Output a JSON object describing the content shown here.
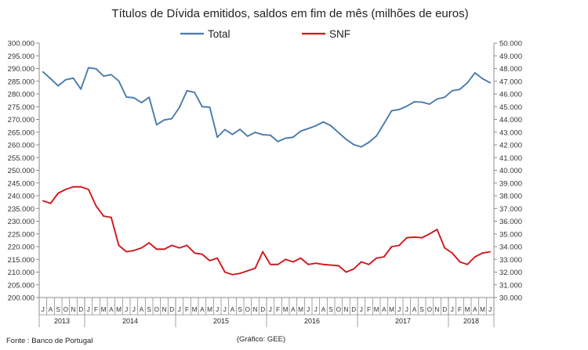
{
  "chart_data": {
    "type": "line",
    "title": "Títulos de Dívida emitidos, saldos em fim de mês  (milhões de euros)",
    "legend": [
      "Total",
      "SNF"
    ],
    "legend_position": "top-center",
    "grid": false,
    "x": [
      "J",
      "A",
      "S",
      "O",
      "N",
      "D",
      "J",
      "F",
      "M",
      "A",
      "M",
      "J",
      "J",
      "A",
      "S",
      "O",
      "N",
      "D",
      "J",
      "F",
      "M",
      "A",
      "M",
      "J",
      "J",
      "A",
      "S",
      "O",
      "N",
      "D",
      "J",
      "F",
      "M",
      "A",
      "M",
      "J",
      "J",
      "A",
      "S",
      "O",
      "N",
      "D",
      "J",
      "F",
      "M",
      "A",
      "M",
      "J",
      "J",
      "A",
      "S",
      "O",
      "N",
      "D",
      "J",
      "F",
      "M",
      "A",
      "M",
      "J"
    ],
    "year_groups": [
      {
        "label": "2013",
        "start": 0,
        "count": 6
      },
      {
        "label": "2014",
        "start": 6,
        "count": 12
      },
      {
        "label": "2015",
        "start": 18,
        "count": 12
      },
      {
        "label": "2016",
        "start": 30,
        "count": 12
      },
      {
        "label": "2017",
        "start": 42,
        "count": 12
      },
      {
        "label": "2018",
        "start": 54,
        "count": 6
      }
    ],
    "y_left": {
      "min": 200000,
      "max": 300000,
      "step": 5000,
      "ticks": [
        "200.000",
        "205.000",
        "210.000",
        "215.000",
        "220.000",
        "225.000",
        "230.000",
        "235.000",
        "240.000",
        "245.000",
        "250.000",
        "255.000",
        "260.000",
        "265.000",
        "270.000",
        "275.000",
        "280.000",
        "285.000",
        "290.000",
        "295.000",
        "300.000"
      ]
    },
    "y_right": {
      "min": 30000,
      "max": 50000,
      "step": 1000,
      "ticks": [
        "30.000",
        "31.000",
        "32.000",
        "33.000",
        "34.000",
        "35.000",
        "36.000",
        "37.000",
        "38.000",
        "39.000",
        "40.000",
        "41.000",
        "42.000",
        "43.000",
        "44.000",
        "45.000",
        "46.000",
        "47.000",
        "48.000",
        "49.000",
        "50.000"
      ]
    },
    "series": [
      {
        "name": "Total",
        "axis": "left",
        "color": "#4a7bab",
        "values": [
          288700,
          286000,
          283200,
          285600,
          286200,
          281900,
          290300,
          289900,
          287000,
          287600,
          285100,
          278800,
          278500,
          276600,
          278700,
          267900,
          269800,
          270300,
          274700,
          281300,
          280600,
          275000,
          274800,
          263000,
          266000,
          264100,
          266100,
          263400,
          264900,
          264000,
          263800,
          261300,
          262600,
          263000,
          265400,
          266400,
          267500,
          269000,
          267500,
          264800,
          262200,
          260100,
          259200,
          261000,
          263500,
          268400,
          273400,
          273900,
          275200,
          276900,
          276800,
          276000,
          278000,
          278700,
          281300,
          281800,
          284400,
          288300,
          286000,
          284400
        ]
      },
      {
        "name": "SNF",
        "axis": "right",
        "color": "#d0171d",
        "values": [
          37600,
          37400,
          38200,
          38500,
          38700,
          38700,
          38500,
          37200,
          36400,
          36300,
          34100,
          33600,
          33700,
          33900,
          34300,
          33800,
          33800,
          34100,
          33900,
          34100,
          33500,
          33400,
          32900,
          33100,
          32000,
          31800,
          31900,
          32100,
          32300,
          33600,
          32600,
          32600,
          33000,
          32800,
          33100,
          32600,
          32700,
          32600,
          32550,
          32500,
          32000,
          32250,
          32800,
          32600,
          33100,
          33200,
          34000,
          34100,
          34700,
          34750,
          34700,
          35000,
          35350,
          33900,
          33500,
          32800,
          32600,
          33200,
          33500,
          33600
        ]
      }
    ]
  },
  "source_note": "Fonte : Banco de Portugal",
  "credit_note": "(Gráfico: GEE)"
}
